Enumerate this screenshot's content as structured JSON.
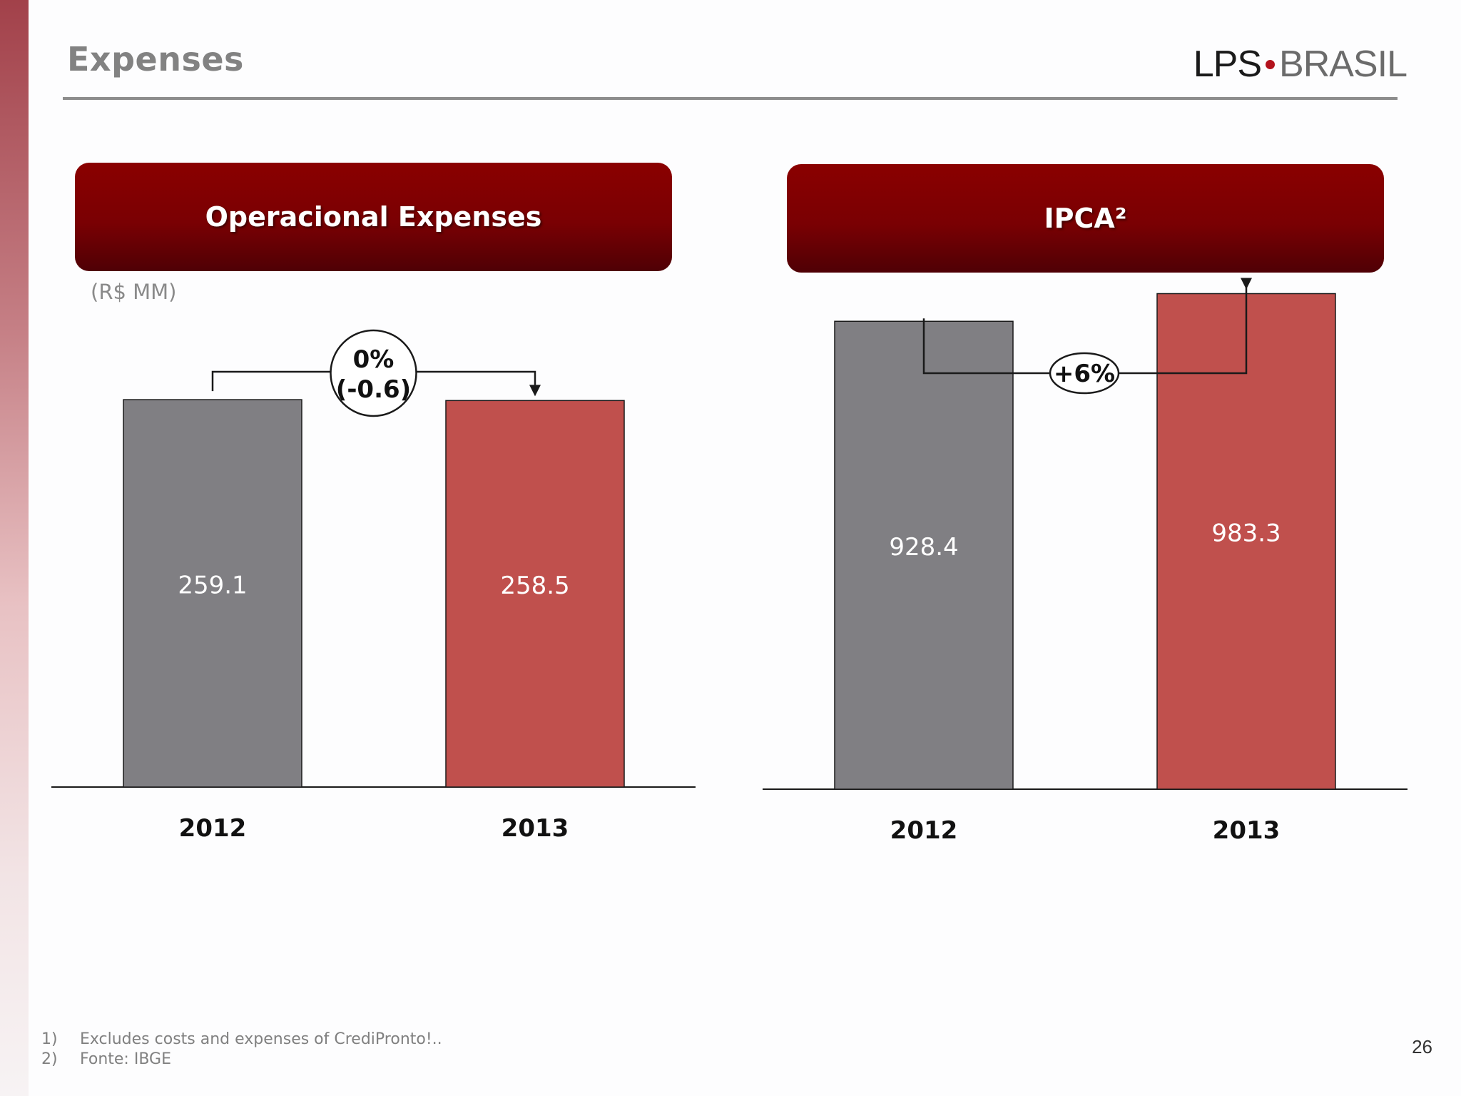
{
  "page": {
    "title": "Expenses",
    "logo": {
      "left": "LPS",
      "right": "BRASIL"
    },
    "page_number": "26",
    "footnotes": [
      {
        "num": "1)",
        "text": "Excludes costs and expenses of CrediPronto!.."
      },
      {
        "num": "2)",
        "text": "Fonte: IBGE"
      }
    ]
  },
  "colors": {
    "gray_bar": "#807f83",
    "red_bar": "#c0504d",
    "header_red": "#7a0003",
    "bar_border": "#1a1a1a"
  },
  "chart_data": [
    {
      "type": "bar",
      "header": "Operacional Expenses",
      "unit": "(R$ MM)",
      "categories": [
        "2012",
        "2013"
      ],
      "values": [
        259.1,
        258.5
      ],
      "value_labels": [
        "259.1",
        "258.5"
      ],
      "change_label": [
        "0%",
        "(-0.6)"
      ]
    },
    {
      "type": "bar",
      "header": "IPCA²",
      "categories": [
        "2012",
        "2013"
      ],
      "values": [
        928.4,
        983.3
      ],
      "value_labels": [
        "928.4",
        "983.3"
      ],
      "change_label": [
        "+6%"
      ]
    }
  ]
}
